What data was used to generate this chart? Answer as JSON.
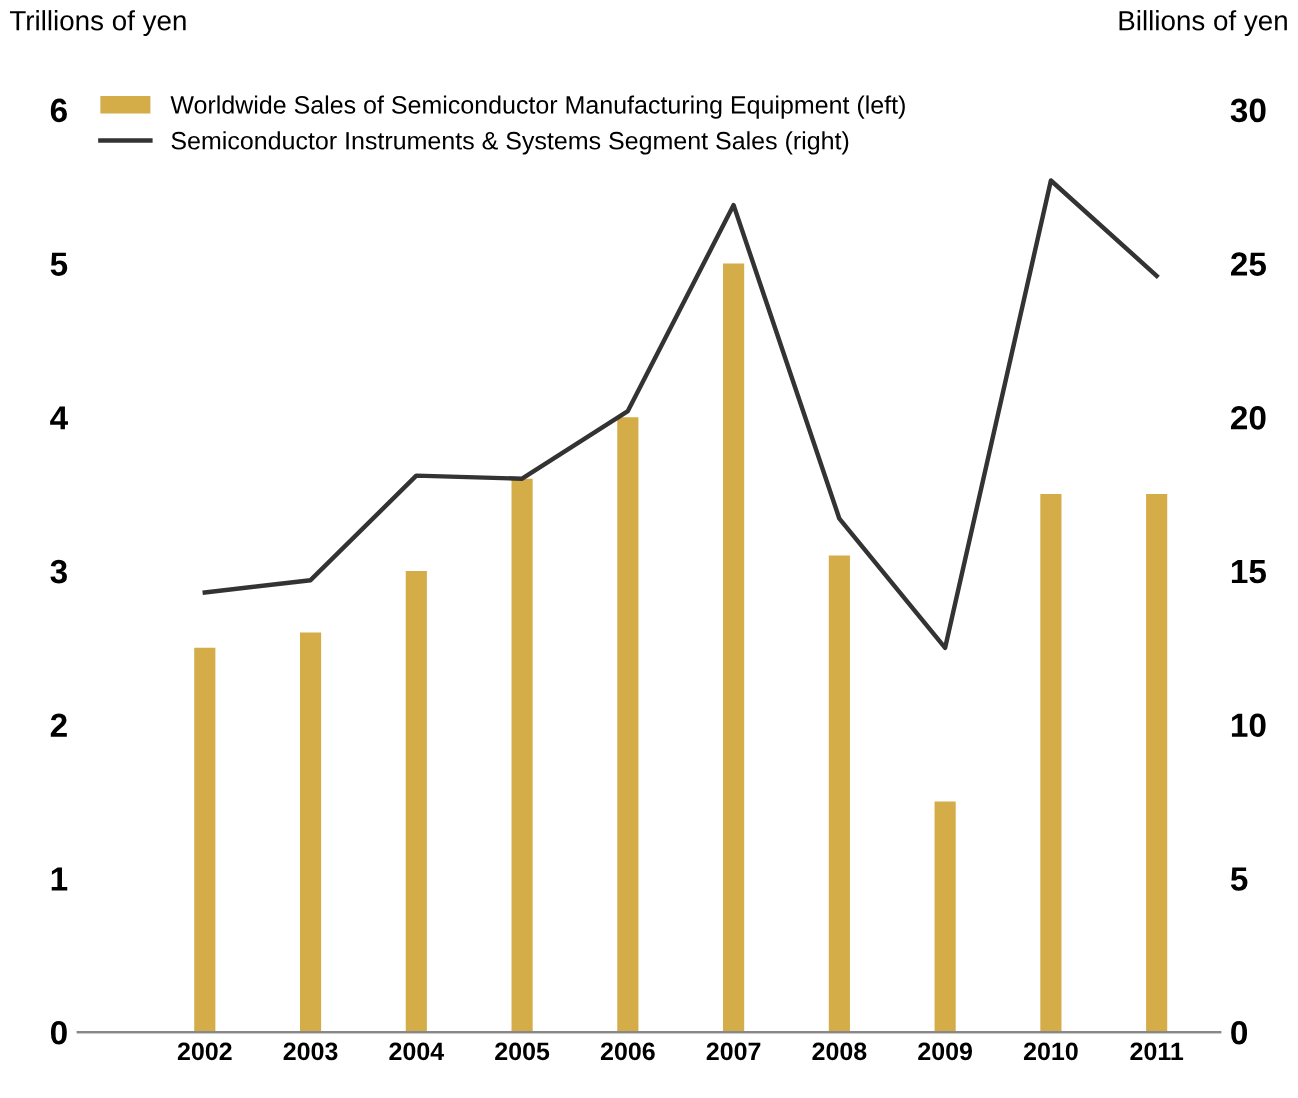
{
  "chart_data": {
    "type": "bar",
    "ylabel": "Trillions of yen",
    "y2label": "Billions of yen",
    "categories": [
      "2002",
      "2003",
      "2004",
      "2005",
      "2006",
      "2007",
      "2008",
      "2009",
      "2010",
      "2011"
    ],
    "series": [
      {
        "name": "Worldwide Sales of Semiconductor Manufacturing Equipment (left)",
        "color": "#d4ac48",
        "values": [
          2.5,
          2.6,
          3.0,
          3.6,
          4.0,
          5.0,
          3.1,
          1.5,
          3.5,
          3.5
        ]
      },
      {
        "name": "Semiconductor Instruments & Systems Segment Sales (right)",
        "type": "line",
        "axis": "y2",
        "color": "#333333",
        "values": [
          14.3,
          14.7,
          18.1,
          18.0,
          20.2,
          26.9,
          16.7,
          12.5,
          27.7,
          24.6
        ]
      }
    ],
    "ylim": [
      0,
      6
    ],
    "yticks": [
      0,
      1,
      2,
      3,
      4,
      5,
      6
    ],
    "y2lim": [
      0,
      30
    ],
    "y2ticks": [
      0,
      5,
      10,
      15,
      20,
      25,
      30
    ],
    "legend": "top left",
    "grid": false,
    "marker": "none",
    "line_style": "solid"
  }
}
